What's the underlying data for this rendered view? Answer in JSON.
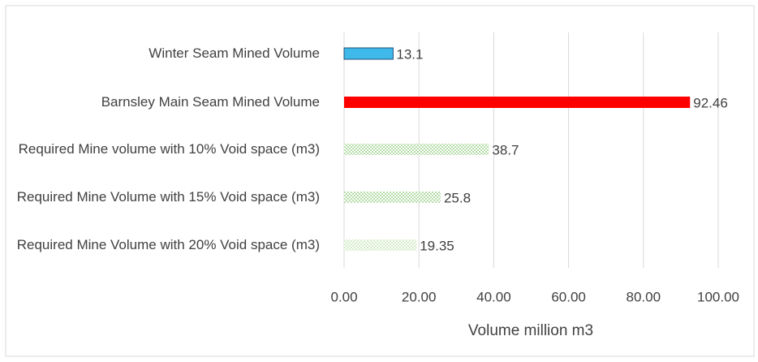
{
  "chart_data": {
    "type": "hbar",
    "categories": [
      "Winter Seam Mined Volume",
      "Barnsley Main Seam Mined Volume",
      "Required Mine volume with 10% Void space (m3)",
      "Required Mine Volume with 15% Void space (m3)",
      "Required Mine Volume with 20% Void space (m3)"
    ],
    "values": [
      13.1,
      92.46,
      38.7,
      25.8,
      19.35
    ],
    "colors": [
      "#3fb9ea",
      "#ff0000",
      "#b5dca8",
      "#b5dca8",
      "#d3ecc8"
    ],
    "x_label": "Volume million m3",
    "xlim": [
      0,
      100
    ],
    "xticks": [
      {
        "value": 0,
        "label": "0.00"
      },
      {
        "value": 20,
        "label": "20.00"
      },
      {
        "value": 40,
        "label": "40.00"
      },
      {
        "value": 60,
        "label": "60.00"
      },
      {
        "value": 80,
        "label": "80.00"
      },
      {
        "value": 100,
        "label": "100.00"
      }
    ],
    "grid": true
  }
}
